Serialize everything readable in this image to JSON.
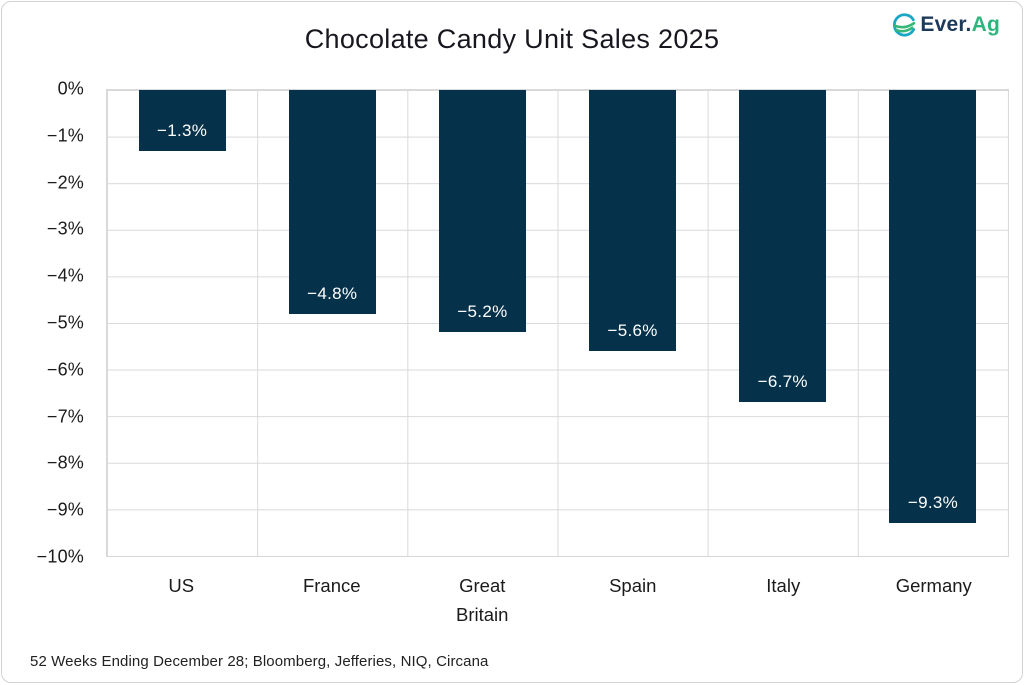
{
  "header": {
    "title": "Chocolate Candy Unit Sales 2025",
    "logo": {
      "brand_primary": "Ever.",
      "brand_secondary": "Ag",
      "primary_color": "#1e3a5a",
      "secondary_color": "#2eb57d",
      "icon_teal": "#1ba6c5",
      "icon_green": "#35b877"
    }
  },
  "chart_data": {
    "type": "bar",
    "title": "Chocolate Candy Unit Sales 2025",
    "categories": [
      "US",
      "France",
      "Great\nBritain",
      "Spain",
      "Italy",
      "Germany"
    ],
    "values": [
      -1.3,
      -4.8,
      -5.2,
      -5.6,
      -6.7,
      -9.3
    ],
    "bar_labels": [
      "−1.3%",
      "−4.8%",
      "−5.2%",
      "−5.6%",
      "−6.7%",
      "−9.3%"
    ],
    "xlabel": "",
    "ylabel": "",
    "ylim": [
      -10,
      0
    ],
    "ytick_labels": [
      "0%",
      "−1%",
      "−2%",
      "−3%",
      "−4%",
      "−5%",
      "−6%",
      "−7%",
      "−8%",
      "−9%",
      "−10%"
    ],
    "grid": true,
    "legend": "none",
    "bar_color": "#05314a",
    "grid_color": "#d9d9d9",
    "bar_label_color": "#ffffff"
  },
  "footer": {
    "source_note": "52 Weeks Ending December 28; Bloomberg, Jefferies, NIQ, Circana"
  }
}
